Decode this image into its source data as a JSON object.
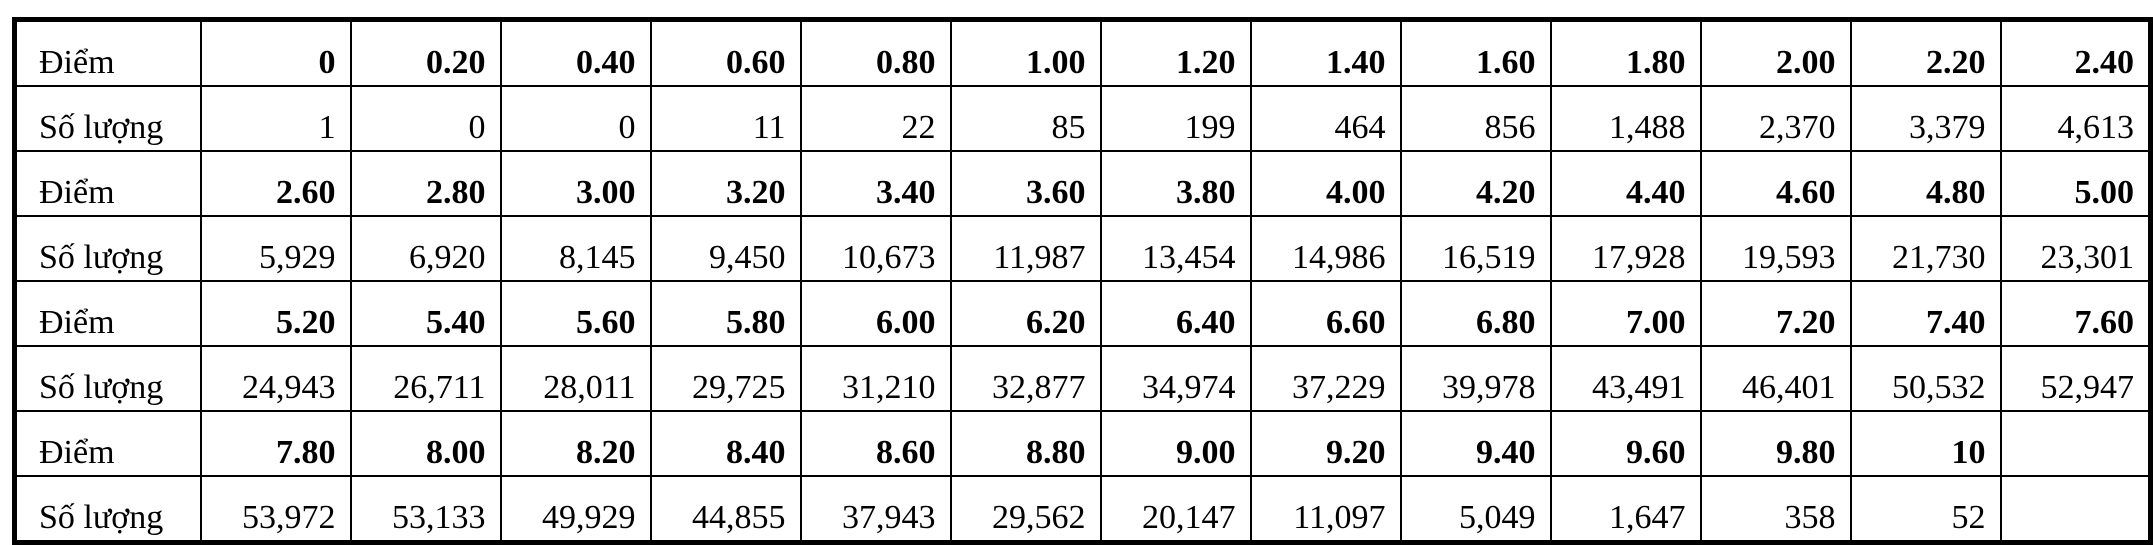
{
  "table": {
    "blocks": [
      {
        "score_label": "Điểm",
        "count_label": "Số lượng",
        "scores": [
          "0",
          "0.20",
          "0.40",
          "0.60",
          "0.80",
          "1.00",
          "1.20",
          "1.40",
          "1.60",
          "1.80",
          "2.00",
          "2.20",
          "2.40"
        ],
        "counts": [
          "1",
          "0",
          "0",
          "11",
          "22",
          "85",
          "199",
          "464",
          "856",
          "1,488",
          "2,370",
          "3,379",
          "4,613"
        ]
      },
      {
        "score_label": "Điểm",
        "count_label": "Số lượng",
        "scores": [
          "2.60",
          "2.80",
          "3.00",
          "3.20",
          "3.40",
          "3.60",
          "3.80",
          "4.00",
          "4.20",
          "4.40",
          "4.60",
          "4.80",
          "5.00"
        ],
        "counts": [
          "5,929",
          "6,920",
          "8,145",
          "9,450",
          "10,673",
          "11,987",
          "13,454",
          "14,986",
          "16,519",
          "17,928",
          "19,593",
          "21,730",
          "23,301"
        ]
      },
      {
        "score_label": "Điểm",
        "count_label": "Số lượng",
        "scores": [
          "5.20",
          "5.40",
          "5.60",
          "5.80",
          "6.00",
          "6.20",
          "6.40",
          "6.60",
          "6.80",
          "7.00",
          "7.20",
          "7.40",
          "7.60"
        ],
        "counts": [
          "24,943",
          "26,711",
          "28,011",
          "29,725",
          "31,210",
          "32,877",
          "34,974",
          "37,229",
          "39,978",
          "43,491",
          "46,401",
          "50,532",
          "52,947"
        ]
      },
      {
        "score_label": "Điểm",
        "count_label": "Số lượng",
        "scores": [
          "7.80",
          "8.00",
          "8.20",
          "8.40",
          "8.60",
          "8.80",
          "9.00",
          "9.20",
          "9.40",
          "9.60",
          "9.80",
          "10",
          ""
        ],
        "counts": [
          "53,972",
          "53,133",
          "49,929",
          "44,855",
          "37,943",
          "29,562",
          "20,147",
          "11,097",
          "5,049",
          "1,647",
          "358",
          "52",
          ""
        ]
      }
    ]
  }
}
